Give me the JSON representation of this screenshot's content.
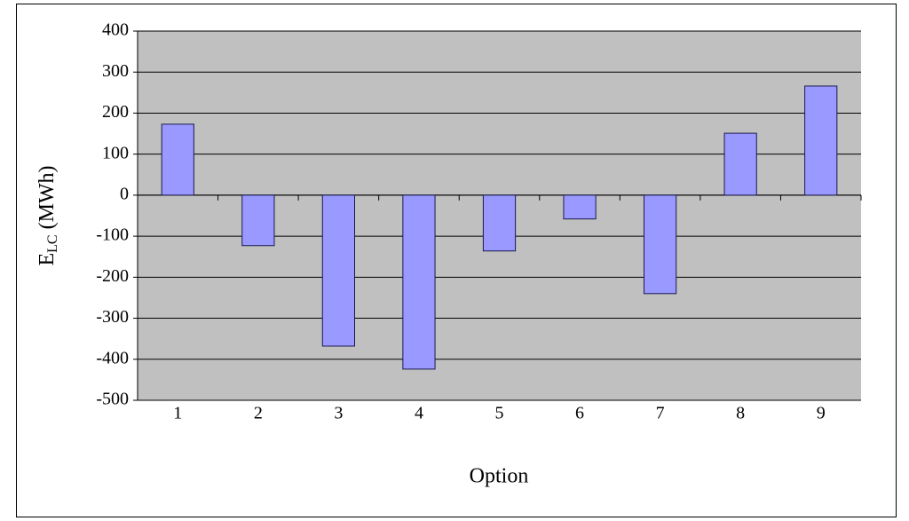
{
  "chart_data": {
    "type": "bar",
    "x_label": "Option",
    "y_label": {
      "main": "E",
      "sub": "LC",
      "unit": "(MWh)"
    },
    "categories": [
      "1",
      "2",
      "3",
      "4",
      "5",
      "6",
      "7",
      "8",
      "9"
    ],
    "values": [
      173,
      -123,
      -368,
      -424,
      -136,
      -58,
      -240,
      151,
      266
    ],
    "color": "#9999ff",
    "ylim": [
      -500,
      400
    ],
    "yticks": [
      -500,
      -400,
      -300,
      -200,
      -100,
      0,
      100,
      200,
      300,
      400
    ],
    "grid": true
  }
}
